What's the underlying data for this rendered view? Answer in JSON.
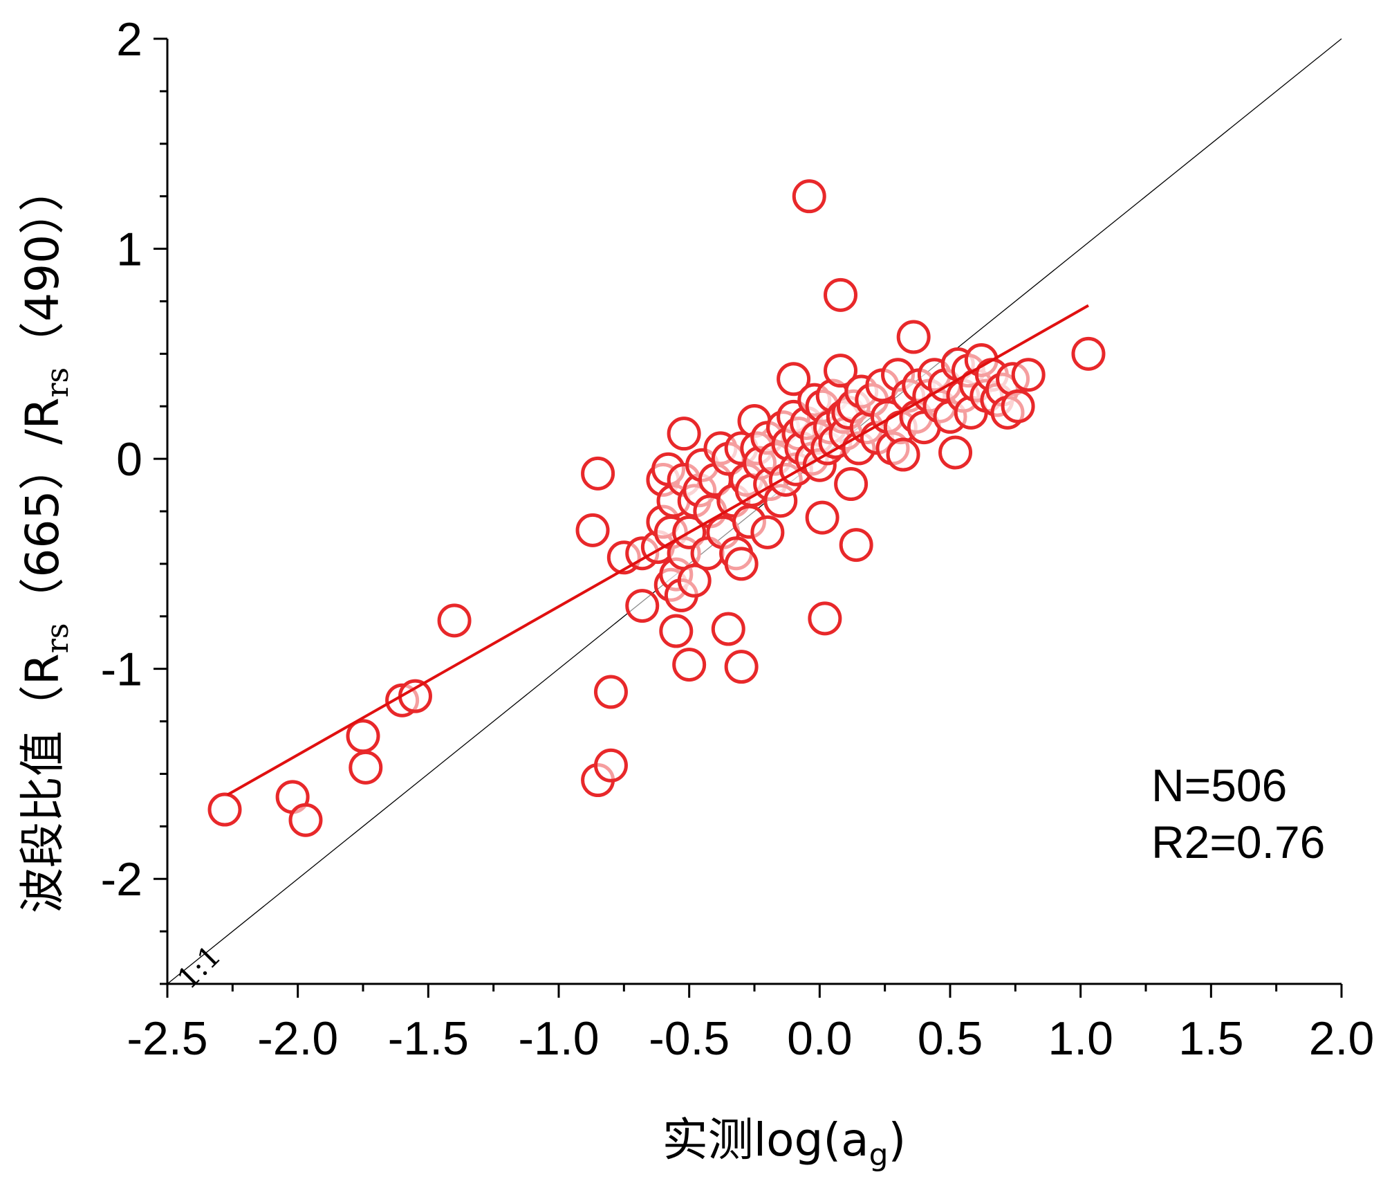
{
  "colors": {
    "points": "#e8282a",
    "fit": "#e01010",
    "reference": "#000000",
    "axis": "#000000"
  },
  "annotations": {
    "n_label": "N=506",
    "r2_label": "R2=0.76",
    "ref_label": "1:1"
  },
  "chart_data": {
    "type": "scatter",
    "title": "",
    "xlabel": {
      "prefix": "实测log(a",
      "sub": "g",
      "suffix": ")"
    },
    "ylabel": {
      "prefix": "波段比值（R",
      "sub1": "rs",
      "mid": "（665）/R",
      "sub2": "rs",
      "suffix": "（490））"
    },
    "xlim": [
      -2.5,
      2.0
    ],
    "ylim": [
      -2.5,
      2.0
    ],
    "x_ticks": [
      -2.5,
      -2.0,
      -1.5,
      -1.0,
      -0.5,
      0.0,
      0.5,
      1.0,
      1.5,
      2.0
    ],
    "x_tick_labels": [
      "-2.5",
      "-2.0",
      "-1.5",
      "-1.0",
      "-0.5",
      "0.0",
      "0.5",
      "1.0",
      "1.5",
      "2.0"
    ],
    "y_ticks": [
      -2,
      -1,
      0,
      1,
      2
    ],
    "y_tick_labels": [
      "-2",
      "-1",
      "0",
      "1",
      "2"
    ],
    "x_minor_step": 0.25,
    "y_minor_step": 0.25,
    "fit_line": {
      "name": "linear fit",
      "x": [
        -2.27,
        1.03
      ],
      "y": [
        -1.6,
        0.73
      ]
    },
    "reference_line": {
      "name": "1:1",
      "x": [
        -2.5,
        2.0
      ],
      "y": [
        -2.5,
        2.0
      ]
    },
    "series": [
      {
        "name": "samples",
        "points": [
          [
            -2.28,
            -1.67
          ],
          [
            -2.02,
            -1.61
          ],
          [
            -1.97,
            -1.72
          ],
          [
            -1.75,
            -1.32
          ],
          [
            -1.74,
            -1.47
          ],
          [
            -1.6,
            -1.15
          ],
          [
            -1.55,
            -1.13
          ],
          [
            -1.4,
            -0.77
          ],
          [
            -0.85,
            -0.07
          ],
          [
            -0.87,
            -0.34
          ],
          [
            -0.85,
            -1.53
          ],
          [
            -0.8,
            -1.11
          ],
          [
            -0.8,
            -1.46
          ],
          [
            -0.75,
            -0.47
          ],
          [
            -0.68,
            -0.45
          ],
          [
            -0.68,
            -0.7
          ],
          [
            -0.62,
            -0.42
          ],
          [
            -0.6,
            -0.3
          ],
          [
            -0.6,
            -0.1
          ],
          [
            -0.58,
            -0.05
          ],
          [
            -0.57,
            -0.6
          ],
          [
            -0.57,
            -0.35
          ],
          [
            -0.56,
            -0.2
          ],
          [
            -0.55,
            -0.55
          ],
          [
            -0.55,
            -0.82
          ],
          [
            -0.53,
            -0.65
          ],
          [
            -0.52,
            -0.45
          ],
          [
            -0.52,
            -0.1
          ],
          [
            -0.52,
            0.12
          ],
          [
            -0.5,
            -0.98
          ],
          [
            -0.5,
            -0.35
          ],
          [
            -0.48,
            -0.58
          ],
          [
            -0.48,
            -0.2
          ],
          [
            -0.46,
            -0.15
          ],
          [
            -0.45,
            -0.03
          ],
          [
            -0.43,
            -0.45
          ],
          [
            -0.42,
            -0.25
          ],
          [
            -0.4,
            -0.1
          ],
          [
            -0.38,
            0.05
          ],
          [
            -0.37,
            -0.35
          ],
          [
            -0.35,
            -0.81
          ],
          [
            -0.35,
            0.0
          ],
          [
            -0.33,
            -0.2
          ],
          [
            -0.32,
            -0.45
          ],
          [
            -0.3,
            -0.99
          ],
          [
            -0.3,
            -0.5
          ],
          [
            -0.3,
            0.05
          ],
          [
            -0.28,
            -0.1
          ],
          [
            -0.27,
            -0.3
          ],
          [
            -0.26,
            -0.15
          ],
          [
            -0.25,
            0.18
          ],
          [
            -0.24,
            0.05
          ],
          [
            -0.23,
            -0.02
          ],
          [
            -0.2,
            -0.35
          ],
          [
            -0.2,
            0.1
          ],
          [
            -0.19,
            -0.12
          ],
          [
            -0.17,
            0.0
          ],
          [
            -0.15,
            -0.2
          ],
          [
            -0.14,
            0.15
          ],
          [
            -0.13,
            -0.1
          ],
          [
            -0.12,
            0.07
          ],
          [
            -0.1,
            0.2
          ],
          [
            -0.1,
            0.38
          ],
          [
            -0.09,
            -0.05
          ],
          [
            -0.08,
            0.12
          ],
          [
            -0.07,
            0.05
          ],
          [
            -0.05,
            0.17
          ],
          [
            -0.04,
            1.25
          ],
          [
            -0.03,
            0.0
          ],
          [
            -0.02,
            0.28
          ],
          [
            -0.01,
            0.1
          ],
          [
            0.0,
            -0.03
          ],
          [
            0.01,
            0.25
          ],
          [
            0.01,
            -0.28
          ],
          [
            0.02,
            -0.76
          ],
          [
            0.03,
            0.05
          ],
          [
            0.04,
            0.15
          ],
          [
            0.05,
            0.3
          ],
          [
            0.06,
            0.08
          ],
          [
            0.08,
            0.42
          ],
          [
            0.08,
            0.78
          ],
          [
            0.09,
            0.2
          ],
          [
            0.1,
            0.12
          ],
          [
            0.11,
            0.22
          ],
          [
            0.12,
            -0.12
          ],
          [
            0.13,
            0.25
          ],
          [
            0.14,
            -0.41
          ],
          [
            0.15,
            0.05
          ],
          [
            0.16,
            0.32
          ],
          [
            0.18,
            0.15
          ],
          [
            0.2,
            0.28
          ],
          [
            0.22,
            0.1
          ],
          [
            0.24,
            0.35
          ],
          [
            0.26,
            0.2
          ],
          [
            0.28,
            0.05
          ],
          [
            0.3,
            0.4
          ],
          [
            0.31,
            0.15
          ],
          [
            0.32,
            0.02
          ],
          [
            0.34,
            0.3
          ],
          [
            0.36,
            0.58
          ],
          [
            0.37,
            0.2
          ],
          [
            0.38,
            0.35
          ],
          [
            0.4,
            0.15
          ],
          [
            0.42,
            0.3
          ],
          [
            0.44,
            0.4
          ],
          [
            0.46,
            0.25
          ],
          [
            0.48,
            0.35
          ],
          [
            0.5,
            0.2
          ],
          [
            0.52,
            0.03
          ],
          [
            0.53,
            0.45
          ],
          [
            0.55,
            0.3
          ],
          [
            0.57,
            0.42
          ],
          [
            0.58,
            0.22
          ],
          [
            0.6,
            0.35
          ],
          [
            0.62,
            0.47
          ],
          [
            0.64,
            0.3
          ],
          [
            0.66,
            0.4
          ],
          [
            0.68,
            0.28
          ],
          [
            0.7,
            0.33
          ],
          [
            0.72,
            0.22
          ],
          [
            0.74,
            0.38
          ],
          [
            0.76,
            0.25
          ],
          [
            0.8,
            0.4
          ],
          [
            1.03,
            0.5
          ]
        ]
      }
    ]
  }
}
